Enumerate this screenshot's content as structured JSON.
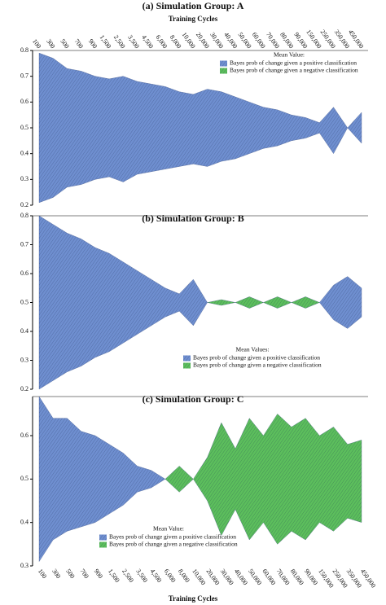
{
  "chart_data": [
    {
      "type": "area",
      "title": "(a) Simulation Group: A",
      "xlabel": "Training Cycles",
      "xlabel_position": "top",
      "categories": [
        "100",
        "300",
        "500",
        "700",
        "900",
        "1,500",
        "2,500",
        "3,500",
        "4,500",
        "6,000",
        "8,000",
        "10,000",
        "20,000",
        "30,000",
        "40,000",
        "50,000",
        "60,000",
        "70,000",
        "80,000",
        "90,000",
        "150,000",
        "250,000",
        "350,000",
        "450,000"
      ],
      "legend_title": "Mean Value:",
      "series": [
        {
          "name": "Bayes prob of change given a positive classification",
          "color": "#6f8fd0",
          "upper": [
            0.79,
            0.77,
            0.73,
            0.72,
            0.7,
            0.69,
            0.7,
            0.68,
            0.67,
            0.66,
            0.64,
            0.63,
            0.65,
            0.64,
            0.62,
            0.6,
            0.58,
            0.57,
            0.55,
            0.54,
            0.52,
            0.58,
            0.5,
            0.56
          ],
          "lower": [
            0.21,
            0.23,
            0.27,
            0.28,
            0.3,
            0.31,
            0.29,
            0.32,
            0.33,
            0.34,
            0.35,
            0.36,
            0.35,
            0.37,
            0.38,
            0.4,
            0.42,
            0.43,
            0.45,
            0.46,
            0.48,
            0.4,
            0.5,
            0.44
          ]
        },
        {
          "name": "Bayes prob of change given a negative classification",
          "color": "#5cbf5c",
          "upper": [
            null,
            null,
            null,
            null,
            null,
            null,
            null,
            null,
            null,
            null,
            null,
            null,
            null,
            null,
            null,
            null,
            null,
            null,
            null,
            null,
            null,
            null,
            null,
            null
          ],
          "lower": [
            null,
            null,
            null,
            null,
            null,
            null,
            null,
            null,
            null,
            null,
            null,
            null,
            null,
            null,
            null,
            null,
            null,
            null,
            null,
            null,
            null,
            null,
            null,
            null
          ]
        }
      ],
      "ylim": [
        0.2,
        0.8
      ],
      "yticks": [
        0.2,
        0.3,
        0.4,
        0.5,
        0.6,
        0.7,
        0.8
      ]
    },
    {
      "type": "area",
      "title": "(b) Simulation Group: B",
      "legend_title": "Mean Values:",
      "series": [
        {
          "name": "Bayes prob of change given a positive classification",
          "color": "#6f8fd0",
          "upper": [
            0.8,
            0.77,
            0.74,
            0.72,
            0.69,
            0.67,
            0.64,
            0.61,
            0.58,
            0.55,
            0.53,
            0.58,
            0.5,
            null,
            null,
            null,
            null,
            null,
            null,
            null,
            0.5,
            0.56,
            0.59,
            0.55
          ],
          "lower": [
            0.2,
            0.23,
            0.26,
            0.28,
            0.31,
            0.33,
            0.36,
            0.39,
            0.42,
            0.45,
            0.47,
            0.42,
            0.5,
            null,
            null,
            null,
            null,
            null,
            null,
            null,
            0.5,
            0.44,
            0.41,
            0.45
          ]
        },
        {
          "name": "Bayes prob of change given a negative classification",
          "color": "#5cbf5c",
          "upper": [
            null,
            null,
            null,
            null,
            null,
            null,
            null,
            null,
            null,
            null,
            null,
            null,
            0.5,
            0.51,
            0.5,
            0.52,
            0.5,
            0.52,
            0.5,
            0.52,
            0.5,
            null,
            null,
            null
          ],
          "lower": [
            null,
            null,
            null,
            null,
            null,
            null,
            null,
            null,
            null,
            null,
            null,
            null,
            0.5,
            0.49,
            0.5,
            0.48,
            0.5,
            0.48,
            0.5,
            0.48,
            0.5,
            null,
            null,
            null
          ]
        }
      ],
      "ylim": [
        0.2,
        0.8
      ],
      "yticks": [
        0.2,
        0.3,
        0.4,
        0.5,
        0.6,
        0.7,
        0.8
      ]
    },
    {
      "type": "area",
      "title": "(c) Simulation Group: C",
      "xlabel": "Training Cycles",
      "xlabel_position": "bottom",
      "categories": [
        "100",
        "300",
        "500",
        "700",
        "900",
        "1,500",
        "2,500",
        "3,500",
        "4,500",
        "6,000",
        "8,000",
        "10,000",
        "20,000",
        "30,000",
        "40,000",
        "50,000",
        "60,000",
        "70,000",
        "80,000",
        "90,000",
        "150,000",
        "250,000",
        "350,000",
        "450,000"
      ],
      "legend_title": "Mean Value:",
      "series": [
        {
          "name": "Bayes prob of change given a positive classification",
          "color": "#6f8fd0",
          "upper": [
            0.69,
            0.64,
            0.64,
            0.61,
            0.6,
            0.58,
            0.56,
            0.53,
            0.52,
            0.5,
            null,
            null,
            null,
            null,
            null,
            null,
            null,
            null,
            null,
            null,
            null,
            null,
            null,
            null
          ],
          "lower": [
            0.31,
            0.36,
            0.38,
            0.39,
            0.4,
            0.42,
            0.44,
            0.47,
            0.48,
            0.5,
            null,
            null,
            null,
            null,
            null,
            null,
            null,
            null,
            null,
            null,
            null,
            null,
            null,
            null
          ]
        },
        {
          "name": "Bayes prob of change given a negative classification",
          "color": "#5cbf5c",
          "upper": [
            null,
            null,
            null,
            null,
            null,
            null,
            null,
            null,
            null,
            0.5,
            0.53,
            0.5,
            0.55,
            0.63,
            0.57,
            0.64,
            0.6,
            0.65,
            0.62,
            0.64,
            0.6,
            0.62,
            0.58,
            0.59
          ],
          "lower": [
            null,
            null,
            null,
            null,
            null,
            null,
            null,
            null,
            null,
            0.5,
            0.47,
            0.5,
            0.45,
            0.37,
            0.43,
            0.36,
            0.4,
            0.35,
            0.38,
            0.36,
            0.4,
            0.38,
            0.41,
            0.4
          ]
        }
      ],
      "ylim": [
        0.3,
        0.69
      ],
      "yticks": [
        0.3,
        0.4,
        0.5,
        0.6
      ]
    }
  ]
}
